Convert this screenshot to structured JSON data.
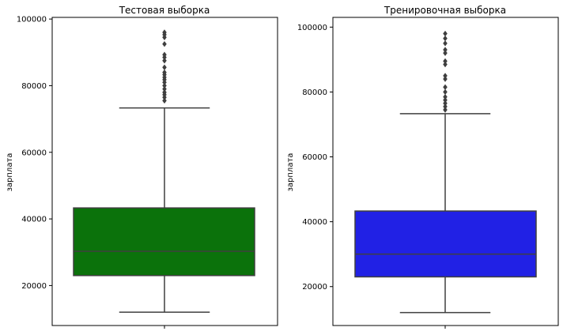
{
  "chart_data": [
    {
      "type": "box",
      "title": "Тестовая выборка",
      "xlabel": "",
      "ylabel": "зарплата",
      "ylim": [
        8000,
        100500
      ],
      "yticks": [
        20000,
        40000,
        60000,
        80000,
        100000
      ],
      "box": {
        "whisker_low": 12000,
        "q1": 23000,
        "median": 30300,
        "q3": 43300,
        "whisker_high": 73300
      },
      "outliers": [
        75500,
        76500,
        77300,
        78000,
        79000,
        80000,
        81000,
        81800,
        82500,
        83300,
        84000,
        85500,
        87500,
        88500,
        89300,
        92500,
        94500,
        95300,
        96000
      ],
      "color": "#0b720b"
    },
    {
      "type": "box",
      "title": "Тренировочная выборка",
      "xlabel": "",
      "ylabel": "зарплата",
      "ylim": [
        8000,
        103000
      ],
      "yticks": [
        20000,
        40000,
        60000,
        80000,
        100000
      ],
      "box": {
        "whisker_low": 12000,
        "q1": 23000,
        "median": 30000,
        "q3": 43300,
        "whisker_high": 73300
      },
      "outliers": [
        74500,
        75500,
        76500,
        77500,
        78500,
        80000,
        81500,
        84000,
        85000,
        88500,
        89500,
        92000,
        93000,
        95000,
        96500,
        98000
      ],
      "color": "#2121e5"
    }
  ]
}
